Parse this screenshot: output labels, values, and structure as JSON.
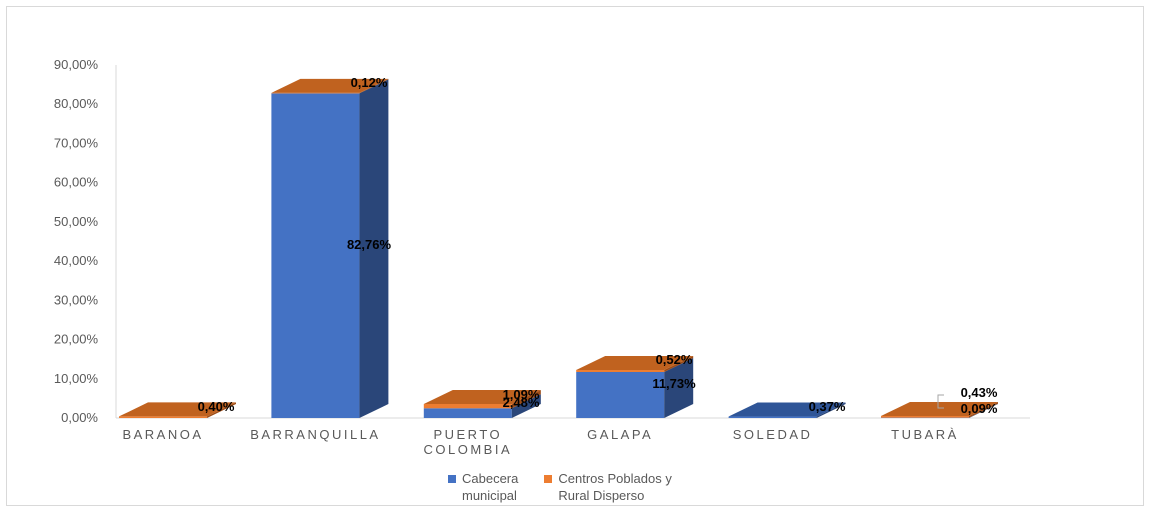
{
  "chart_data": {
    "type": "bar",
    "stacked": true,
    "style": "3d",
    "categories": [
      "BARANOA",
      "BARRANQUILLA",
      "PUERTO COLOMBIA",
      "GALAPA",
      "SOLEDAD",
      "TUBARÀ"
    ],
    "category_lines": [
      [
        "BARANOA"
      ],
      [
        "BARRANQUILLA"
      ],
      [
        "PUERTO",
        "COLOMBIA"
      ],
      [
        "GALAPA"
      ],
      [
        "SOLEDAD"
      ],
      [
        "TUBARÀ"
      ]
    ],
    "series": [
      {
        "name": "Cabecera municipal",
        "color": "#4472c4",
        "values": [
          0,
          82.76,
          2.48,
          11.73,
          0.37,
          0.09
        ],
        "labels": [
          "",
          "82,76%",
          "2,48%",
          "11,73%",
          "0,37%",
          "0,09%"
        ]
      },
      {
        "name": "Centros Poblados y Rural Disperso",
        "color": "#ed7d31",
        "values": [
          0.4,
          0.12,
          1.09,
          0.52,
          0,
          0.43
        ],
        "labels": [
          "0,40%",
          "0,12%",
          "1,09%",
          "0,52%",
          "",
          "0,43%"
        ]
      }
    ],
    "ylim": [
      0,
      90
    ],
    "yticks": [
      "0,00%",
      "10,00%",
      "20,00%",
      "30,00%",
      "40,00%",
      "50,00%",
      "60,00%",
      "70,00%",
      "80,00%",
      "90,00%"
    ],
    "title": "",
    "xlabel": "",
    "ylabel": "",
    "grid": false,
    "legend_position": "bottom"
  }
}
